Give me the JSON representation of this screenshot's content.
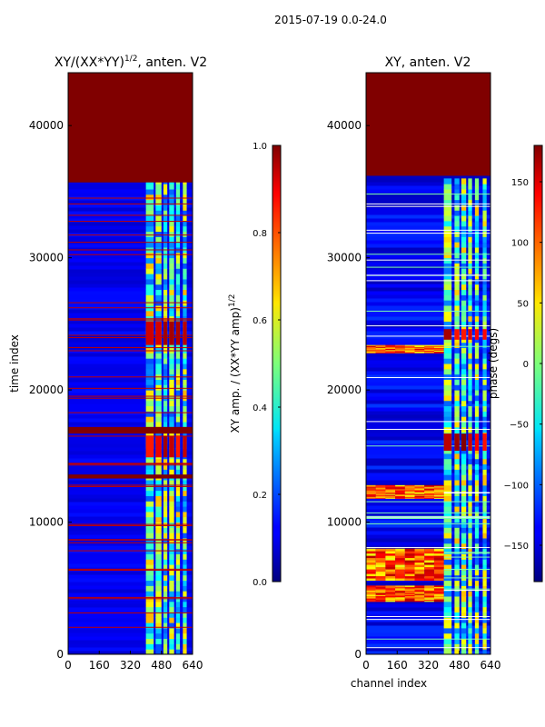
{
  "figure": {
    "suptitle": "2015-07-19 0.0-24.0",
    "colormap": "jet",
    "colors": {
      "high": "#800000",
      "low": "#00007f",
      "blue": "#0000ff",
      "text": "#000000"
    }
  },
  "chart_data": [
    {
      "type": "heatmap",
      "id": "amp",
      "title_prefix": "XY/(XX*YY)",
      "title_sup": "1/2",
      "title_suffix": ", anten. V2",
      "xlabel": "",
      "ylabel": "time index",
      "xlim": [
        0,
        640
      ],
      "ylim": [
        0,
        44000
      ],
      "xticks": [
        0,
        160,
        320,
        480,
        640
      ],
      "yticks": [
        0,
        10000,
        20000,
        30000,
        40000
      ],
      "data_extent_top": 44000,
      "saturated_rows": [
        [
          35700,
          44000
        ],
        [
          16700,
          17200
        ],
        [
          13300,
          13600
        ]
      ],
      "hot_bursts": [
        [
          23400,
          25200
        ],
        [
          14900,
          16500
        ]
      ],
      "bright_columns": [
        [
          400,
          440
        ],
        [
          450,
          480
        ],
        [
          490,
          510
        ],
        [
          520,
          545
        ],
        [
          555,
          575
        ],
        [
          590,
          610
        ]
      ],
      "colorbar": {
        "label_prefix": "XY amp. / (XX*YY amp)",
        "label_sup": "1/2",
        "min": 0.0,
        "max": 1.0,
        "ticks": [
          0.0,
          0.2,
          0.4,
          0.6,
          0.8,
          1.0
        ],
        "tick_labels": [
          "0.0",
          "0.2",
          "0.4",
          "0.6",
          "0.8",
          "1.0"
        ]
      }
    },
    {
      "type": "heatmap",
      "id": "phase",
      "title": "XY, anten. V2",
      "xlabel": "channel index",
      "ylabel": "",
      "xlim": [
        0,
        640
      ],
      "ylim": [
        0,
        44000
      ],
      "xticks": [
        0,
        160,
        320,
        480,
        640
      ],
      "yticks": [
        0,
        10000,
        20000,
        30000,
        40000
      ],
      "saturated_rows": [
        [
          36200,
          44000
        ]
      ],
      "hot_bursts": [
        [
          23800,
          24600
        ],
        [
          15400,
          16700
        ]
      ],
      "bright_columns": [
        [
          400,
          440
        ],
        [
          455,
          480
        ],
        [
          490,
          515
        ],
        [
          525,
          545
        ],
        [
          560,
          580
        ],
        [
          600,
          620
        ]
      ],
      "colorbar": {
        "label": "phase (degs)",
        "min": -180,
        "max": 180,
        "ticks": [
          -150,
          -100,
          -50,
          0,
          50,
          100,
          150
        ],
        "tick_labels": [
          "−150",
          "−100",
          "−50",
          "0",
          "50",
          "100",
          "150"
        ]
      }
    }
  ]
}
